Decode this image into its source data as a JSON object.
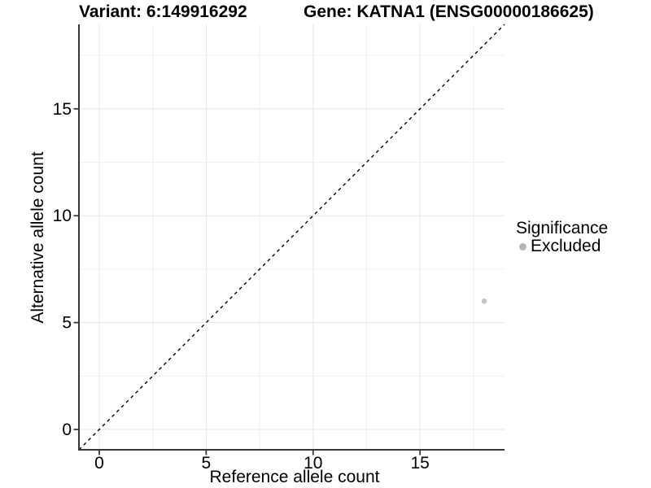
{
  "header": {
    "title_left": "Variant: 6:149916292",
    "title_right": "Gene: KATNA1 (ENSG00000186625)"
  },
  "chart_data": {
    "type": "scatter",
    "title": "Variant: 6:149916292   Gene: KATNA1 (ENSG00000186625)",
    "xlabel": "Reference allele count",
    "ylabel": "Alternative allele count",
    "xlim": [
      -0.95,
      18.95
    ],
    "ylim": [
      -0.95,
      18.95
    ],
    "xticks": [
      0,
      5,
      10,
      15
    ],
    "yticks": [
      0,
      5,
      10,
      15
    ],
    "xticks_minor": [
      2.5,
      7.5,
      12.5,
      17.5
    ],
    "yticks_minor": [
      2.5,
      7.5,
      12.5,
      17.5
    ],
    "grid": "major+minor",
    "identity_line": {
      "equation": "y = x",
      "style": "dashed",
      "color": "#000000"
    },
    "series": [
      {
        "name": "Excluded",
        "color": "#c4c4c4",
        "points": [
          [
            18,
            6
          ]
        ]
      }
    ],
    "legend": {
      "title": "Significance",
      "position": "right",
      "items": [
        {
          "label": "Excluded",
          "color": "#b5b5b5"
        }
      ]
    }
  },
  "colors": {
    "background": "#ffffff",
    "axis_line": "#383838",
    "tick_label": "#000000",
    "grid_major": "#e6e6e6",
    "grid_minor": "#f0f0f0"
  }
}
